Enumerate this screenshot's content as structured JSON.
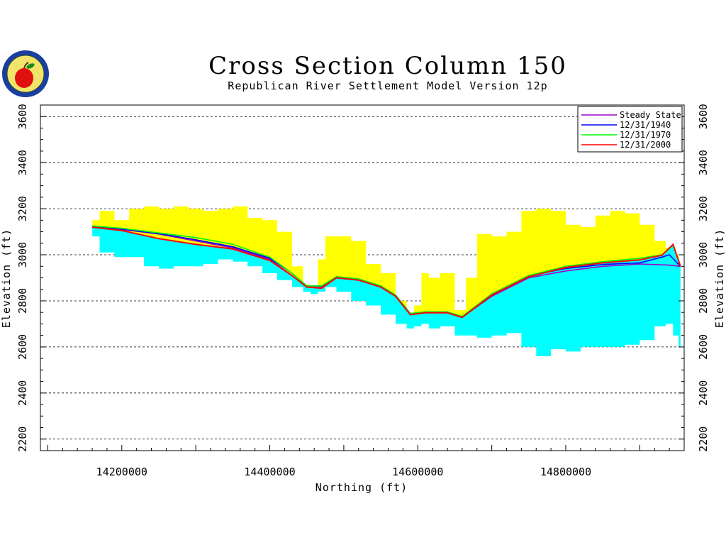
{
  "chart_data": {
    "type": "area",
    "title": "Cross Section Column 150",
    "subtitle": "Republican River Settlement Model Version 12p",
    "xlabel": "Northing (ft)",
    "ylabel": "Elevation (ft)",
    "ylabel_right": "Elevation (ft)",
    "xlim": [
      14090000,
      14960000
    ],
    "ylim": [
      2150,
      3650
    ],
    "x_ticks": [
      14200000,
      14400000,
      14600000,
      14800000
    ],
    "x_tick_labels": [
      "14200000",
      "14400000",
      "14600000",
      "14800000"
    ],
    "y_ticks": [
      2200,
      2400,
      2600,
      2800,
      3000,
      3200,
      3400,
      3600
    ],
    "y_tick_labels": [
      "2200",
      "2400",
      "2600",
      "2800",
      "3000",
      "3200",
      "3400",
      "3600"
    ],
    "grid": "horizontal dashed",
    "legend_position": "top-right",
    "colors": {
      "land_surface_fill": "#ffff00",
      "saturated_fill": "#00ffff",
      "steady_state": "#a000c8",
      "y1940": "#0000ff",
      "y1970": "#00ff00",
      "y2000": "#ff0000"
    },
    "land_surface": {
      "x": [
        14160000,
        14180000,
        14200000,
        14220000,
        14240000,
        14260000,
        14280000,
        14300000,
        14320000,
        14340000,
        14360000,
        14380000,
        14400000,
        14420000,
        14440000,
        14450000,
        14460000,
        14470000,
        14480000,
        14500000,
        14520000,
        14540000,
        14560000,
        14580000,
        14590000,
        14600000,
        14610000,
        14620000,
        14640000,
        14660000,
        14670000,
        14690000,
        14710000,
        14730000,
        14750000,
        14770000,
        14790000,
        14810000,
        14830000,
        14850000,
        14870000,
        14890000,
        14910000,
        14930000,
        14940000,
        14950000,
        14955000
      ],
      "values": [
        3150,
        3190,
        3150,
        3200,
        3210,
        3200,
        3210,
        3200,
        3190,
        3200,
        3210,
        3160,
        3150,
        3100,
        2950,
        2870,
        2860,
        2980,
        3080,
        3080,
        3060,
        2960,
        2920,
        2800,
        2720,
        2780,
        2920,
        2900,
        2920,
        2760,
        2900,
        3090,
        3080,
        3100,
        3190,
        3200,
        3190,
        3130,
        3120,
        3170,
        3190,
        3180,
        3130,
        3060,
        3030,
        3000,
        2900
      ]
    },
    "saturated_bottom": {
      "x": [
        14160000,
        14180000,
        14200000,
        14220000,
        14240000,
        14260000,
        14280000,
        14300000,
        14320000,
        14340000,
        14360000,
        14380000,
        14400000,
        14420000,
        14440000,
        14450000,
        14460000,
        14470000,
        14480000,
        14500000,
        14520000,
        14540000,
        14560000,
        14580000,
        14590000,
        14600000,
        14610000,
        14620000,
        14640000,
        14660000,
        14670000,
        14690000,
        14710000,
        14730000,
        14750000,
        14770000,
        14790000,
        14810000,
        14830000,
        14850000,
        14870000,
        14890000,
        14910000,
        14930000,
        14940000,
        14950000,
        14955000
      ],
      "values": [
        3080,
        3010,
        2990,
        2990,
        2950,
        2940,
        2950,
        2950,
        2960,
        2980,
        2970,
        2950,
        2920,
        2890,
        2860,
        2840,
        2830,
        2840,
        2860,
        2840,
        2800,
        2780,
        2740,
        2700,
        2680,
        2690,
        2700,
        2680,
        2690,
        2650,
        2650,
        2640,
        2650,
        2660,
        2600,
        2560,
        2590,
        2580,
        2600,
        2600,
        2600,
        2610,
        2630,
        2690,
        2700,
        2650,
        2600
      ]
    },
    "series": [
      {
        "name": "Steady State",
        "color": "#a000c8",
        "x": [
          14160000,
          14200000,
          14250000,
          14300000,
          14350000,
          14400000,
          14430000,
          14450000,
          14470000,
          14490000,
          14520000,
          14550000,
          14570000,
          14590000,
          14610000,
          14640000,
          14660000,
          14700000,
          14750000,
          14800000,
          14850000,
          14900000,
          14940000,
          14955000
        ],
        "values": [
          3120,
          3110,
          3090,
          3060,
          3030,
          2980,
          2910,
          2860,
          2860,
          2900,
          2890,
          2860,
          2820,
          2740,
          2750,
          2750,
          2730,
          2820,
          2900,
          2930,
          2950,
          2960,
          2955,
          2950
        ]
      },
      {
        "name": "12/31/1940",
        "color": "#0000ff",
        "x": [
          14160000,
          14200000,
          14250000,
          14300000,
          14350000,
          14400000,
          14430000,
          14450000,
          14470000,
          14490000,
          14520000,
          14550000,
          14570000,
          14590000,
          14610000,
          14640000,
          14660000,
          14700000,
          14750000,
          14800000,
          14850000,
          14900000,
          14930000,
          14940000,
          14955000
        ],
        "values": [
          3122,
          3112,
          3092,
          3065,
          3035,
          2985,
          2920,
          2865,
          2865,
          2905,
          2895,
          2865,
          2825,
          2745,
          2752,
          2752,
          2732,
          2830,
          2910,
          2940,
          2958,
          2965,
          2990,
          3000,
          2950
        ]
      },
      {
        "name": "12/31/1970",
        "color": "#00ff00",
        "x": [
          14160000,
          14200000,
          14250000,
          14300000,
          14350000,
          14400000,
          14430000,
          14450000,
          14470000,
          14490000,
          14520000,
          14550000,
          14570000,
          14590000,
          14610000,
          14640000,
          14660000,
          14700000,
          14750000,
          14800000,
          14850000,
          14900000,
          14930000,
          14945000,
          14955000
        ],
        "values": [
          3125,
          3115,
          3095,
          3075,
          3045,
          2990,
          2920,
          2865,
          2865,
          2905,
          2895,
          2865,
          2825,
          2745,
          2752,
          2752,
          2732,
          2830,
          2910,
          2950,
          2970,
          2985,
          3000,
          3040,
          2950
        ]
      },
      {
        "name": "12/31/2000",
        "color": "#ff0000",
        "x": [
          14160000,
          14200000,
          14250000,
          14300000,
          14350000,
          14400000,
          14430000,
          14450000,
          14470000,
          14490000,
          14520000,
          14550000,
          14570000,
          14590000,
          14610000,
          14640000,
          14660000,
          14700000,
          14750000,
          14800000,
          14850000,
          14900000,
          14930000,
          14945000,
          14955000
        ],
        "values": [
          3120,
          3105,
          3070,
          3045,
          3025,
          2975,
          2910,
          2860,
          2855,
          2900,
          2890,
          2860,
          2820,
          2740,
          2748,
          2748,
          2728,
          2825,
          2905,
          2945,
          2965,
          2978,
          2998,
          3045,
          2950
        ]
      }
    ]
  }
}
